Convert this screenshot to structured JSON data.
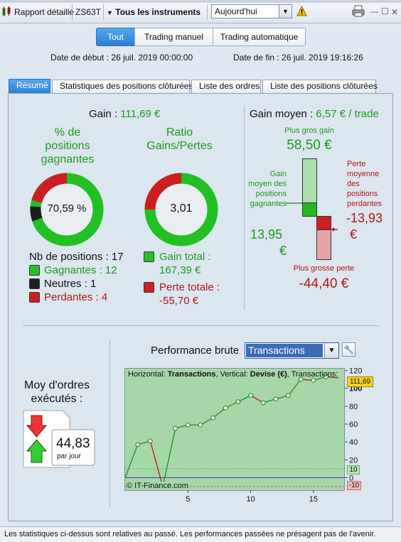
{
  "toolbar": {
    "report_label": "Rapport détaillé",
    "account": "ZS63T",
    "instruments": "Tous les instruments",
    "period": "Aujourd'hui"
  },
  "modes": {
    "all": "Tout",
    "manual": "Trading manuel",
    "auto": "Trading automatique"
  },
  "dates": {
    "start": "Date de début : 26 juil. 2019 00:00:00",
    "end": "Date de fin : 26 juil. 2019 19:16:26"
  },
  "tabs": [
    "Résumé",
    "Statistiques des positions clôturées",
    "Liste des ordres",
    "Liste des positions clôturées"
  ],
  "summary": {
    "gain_label": "Gain :",
    "gain_value": "111,69 €",
    "pct_title_1": "% de",
    "pct_title_2": "positions",
    "pct_title_3": "gagnantes",
    "pct_value": "70,59 %",
    "ratio_title_1": "Ratio",
    "ratio_title_2": "Gains/Pertes",
    "ratio_value": "3,01",
    "nb_positions": "Nb de positions : 17",
    "winners": "Gagnantes : 12",
    "neutral": "Neutres : 1",
    "losers": "Perdantes : 4",
    "total_gain_1": "Gain total :",
    "total_gain_2": "167,39 €",
    "total_loss_1": "Perte totale :",
    "total_loss_2": "-55,70 €"
  },
  "gain_moyen": {
    "label": "Gain moyen :",
    "value": "6,57 € / trade",
    "biggest_gain_label": "Plus gros gain",
    "biggest_gain": "58,50 €",
    "avg_win_label_1": "Gain",
    "avg_win_label_2": "moyen des",
    "avg_win_label_3": "positions",
    "avg_win_label_4": "gagnantes",
    "avg_win_1": "13,95",
    "avg_win_2": "€",
    "avg_loss_label_1": "Perte",
    "avg_loss_label_2": "moyenne",
    "avg_loss_label_3": "des",
    "avg_loss_label_4": "positions",
    "avg_loss_label_5": "perdantes",
    "avg_loss_1": "-13,93",
    "avg_loss_2": "€",
    "biggest_loss_label": "Plus grosse perte",
    "biggest_loss": "-44,40 €"
  },
  "orders": {
    "title_1": "Moy d'ordres",
    "title_2": "exécutés :",
    "value": "44,83",
    "unit": "par jour"
  },
  "performance": {
    "label": "Performance brute",
    "mode": "Transactions",
    "legend_h": "Horizontal: ",
    "legend_h_val": "Transactions",
    "legend_v": ", Vertical: ",
    "legend_v_val": "Devise (€)",
    "legend_t": ", Transactions:",
    "watermark": "© IT-Finance.com",
    "last_value_label": "111,69",
    "upper_band_label": "10",
    "lower_band_label": "-10"
  },
  "chart_data": {
    "type": "line",
    "x": [
      0,
      1,
      2,
      3,
      4,
      5,
      6,
      7,
      8,
      9,
      10,
      11,
      12,
      13,
      14,
      15,
      16,
      17
    ],
    "values": [
      0,
      37,
      41,
      -10,
      55,
      59,
      59,
      67,
      78,
      85,
      92,
      84,
      88,
      92,
      110,
      109,
      113,
      111.69
    ],
    "xticks": [
      5,
      10,
      15
    ],
    "yticks": [
      0,
      20,
      40,
      60,
      80,
      100,
      120
    ],
    "xlim": [
      0,
      17.5
    ],
    "ylim": [
      -14,
      122
    ],
    "bands": [
      10,
      -10
    ],
    "colors": {
      "up": "#1d8f1d",
      "down": "#c01818"
    }
  },
  "footer": "Les statistiques ci-dessus sont relatives au passé. Les performances passées ne présagent pas de l'avenir."
}
